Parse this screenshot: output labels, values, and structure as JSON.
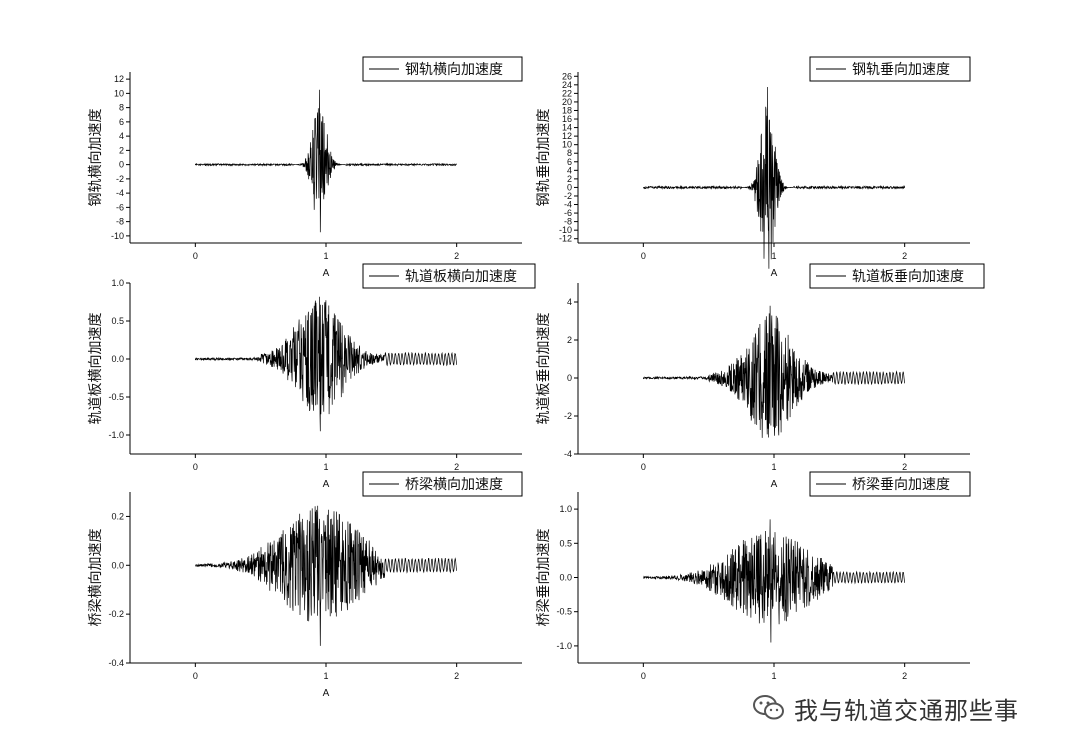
{
  "watermark": {
    "text": "我与轨道交通那些事",
    "icon": "wechat-icon"
  },
  "chart_data": [
    {
      "type": "line",
      "title": "",
      "legend": "钢轨横向加速度",
      "legend_position": "top-right",
      "xlabel": "A",
      "ylabel": "钢轨横向加速度",
      "xlim": [
        -0.5,
        2.5
      ],
      "ylim": [
        -11,
        13
      ],
      "xticks": [
        0,
        1,
        2
      ],
      "xtick_labels": [
        "0",
        "1",
        "2"
      ],
      "yticks": [
        -10,
        -8,
        -6,
        -4,
        -2,
        0,
        2,
        4,
        6,
        8,
        10,
        12
      ],
      "ytick_labels": [
        "-10",
        "-8",
        "-6",
        "-4",
        "-2",
        "0",
        "2",
        "4",
        "6",
        "8",
        "10",
        "12"
      ],
      "grid": false,
      "series_color": "#000000",
      "x_range": [
        0,
        2
      ],
      "event_center": 0.95,
      "peak_max": 10.5,
      "peak_min": -9.5
    },
    {
      "type": "line",
      "title": "",
      "legend": "钢轨垂向加速度",
      "legend_position": "top-right",
      "xlabel": "A",
      "ylabel": "钢轨垂向加速度",
      "xlim": [
        -0.5,
        2.5
      ],
      "ylim": [
        -13,
        27
      ],
      "xticks": [
        0,
        1,
        2
      ],
      "xtick_labels": [
        "0",
        "1",
        "2"
      ],
      "yticks": [
        -12,
        -10,
        -8,
        -6,
        -4,
        -2,
        0,
        2,
        4,
        6,
        8,
        10,
        12,
        14,
        16,
        18,
        20,
        22,
        24,
        26
      ],
      "ytick_labels": [
        "-12",
        "-10",
        "-8",
        "-6",
        "-4",
        "-2",
        "0",
        "2",
        "4",
        "6",
        "8",
        "10",
        "12",
        "14",
        "16",
        "18",
        "20",
        "22",
        "24",
        "26"
      ],
      "grid": false,
      "series_color": "#000000",
      "x_range": [
        0,
        2
      ],
      "event_center": 0.95,
      "peak_max": 23.5,
      "peak_min": -10
    },
    {
      "type": "line",
      "title": "",
      "legend": "轨道板横向加速度",
      "legend_position": "top-right",
      "xlabel": "A",
      "ylabel": "轨道板横向加速度",
      "xlim": [
        -0.5,
        2.5
      ],
      "ylim": [
        -1.25,
        1.0
      ],
      "xticks": [
        0,
        1,
        2
      ],
      "xtick_labels": [
        "0",
        "1",
        "2"
      ],
      "yticks": [
        -1.0,
        -0.5,
        0.0,
        0.5,
        1.0
      ],
      "ytick_labels": [
        "-1.0",
        "-0.5",
        "0.0",
        "0.5",
        "1.0"
      ],
      "grid": false,
      "series_color": "#000000",
      "x_range": [
        0,
        2
      ],
      "event_center": 0.95,
      "peak_max": 0.82,
      "peak_min": -0.95
    },
    {
      "type": "line",
      "title": "",
      "legend": "轨道板垂向加速度",
      "legend_position": "top-right",
      "xlabel": "A",
      "ylabel": "轨道板垂向加速度",
      "xlim": [
        -0.5,
        2.5
      ],
      "ylim": [
        -4,
        5
      ],
      "xticks": [
        0,
        1,
        2
      ],
      "xtick_labels": [
        "0",
        "1",
        "2"
      ],
      "yticks": [
        -4,
        -2,
        0,
        2,
        4
      ],
      "ytick_labels": [
        "-4",
        "-2",
        "0",
        "2",
        "4"
      ],
      "grid": false,
      "series_color": "#000000",
      "x_range": [
        0,
        2
      ],
      "event_center": 0.97,
      "peak_max": 3.8,
      "peak_min": -2.5
    },
    {
      "type": "line",
      "title": "",
      "legend": "桥梁横向加速度",
      "legend_position": "top-right",
      "xlabel": "A",
      "ylabel": "桥梁横向加速度",
      "xlim": [
        -0.5,
        2.5
      ],
      "ylim": [
        -0.4,
        0.3
      ],
      "xticks": [
        0,
        1,
        2
      ],
      "xtick_labels": [
        "0",
        "1",
        "2"
      ],
      "yticks": [
        -0.4,
        -0.2,
        0.0,
        0.2
      ],
      "ytick_labels": [
        "-0.4",
        "-0.2",
        "0.0",
        "0.2"
      ],
      "grid": false,
      "series_color": "#000000",
      "x_range": [
        0,
        2
      ],
      "event_center": 0.95,
      "peak_max": 0.19,
      "peak_min": -0.33
    },
    {
      "type": "line",
      "title": "",
      "legend": "桥梁垂向加速度",
      "legend_position": "top-right",
      "xlabel": "",
      "ylabel": "桥梁垂向加速度",
      "xlim": [
        -0.5,
        2.5
      ],
      "ylim": [
        -1.25,
        1.25
      ],
      "xticks": [
        0,
        1,
        2
      ],
      "xtick_labels": [
        "0",
        "1",
        "2"
      ],
      "yticks": [
        -1.0,
        -0.5,
        0.0,
        0.5,
        1.0
      ],
      "ytick_labels": [
        "-1.0",
        "-0.5",
        "0.0",
        "0.5",
        "1.0"
      ],
      "grid": false,
      "series_color": "#000000",
      "x_range": [
        0,
        2
      ],
      "event_center": 0.97,
      "peak_max": 0.85,
      "peak_min": -0.95
    }
  ]
}
